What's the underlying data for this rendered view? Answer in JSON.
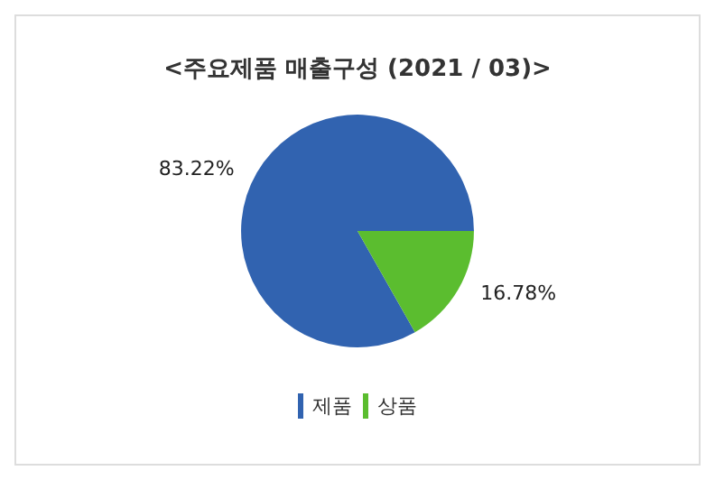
{
  "chart_data": {
    "type": "pie",
    "title": "<주요제품 매출구성 (2021 / 03)>",
    "categories": [
      "제품",
      "상품"
    ],
    "values": [
      83.22,
      16.78
    ],
    "colors": [
      "#3163b0",
      "#5bbd2f"
    ],
    "value_labels": [
      "83.22%",
      "16.78%"
    ],
    "legend": "bottom"
  }
}
